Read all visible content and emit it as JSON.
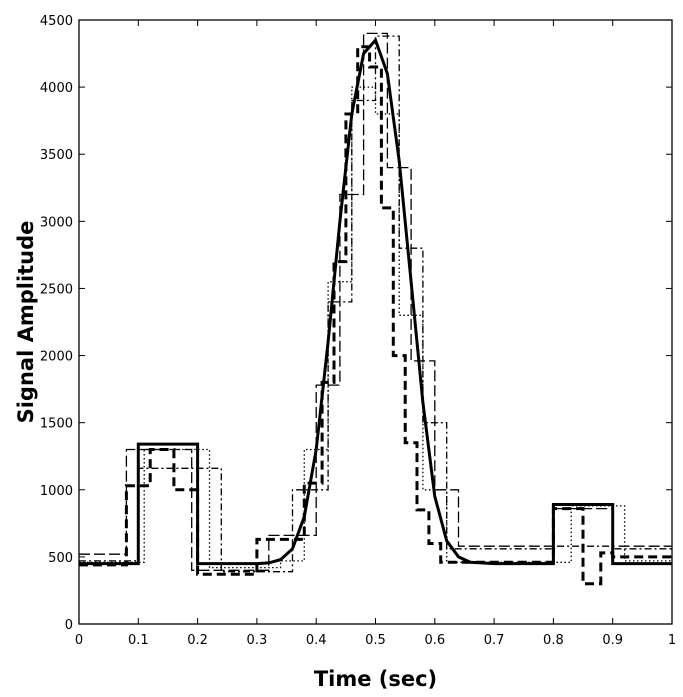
{
  "chart_data": {
    "type": "line",
    "title": "",
    "xlabel": "Time (sec)",
    "ylabel": "Signal Amplitude",
    "xlim": [
      0,
      1
    ],
    "ylim": [
      0,
      4500
    ],
    "xticks": [
      0,
      0.1,
      0.2,
      0.3,
      0.4,
      0.5,
      0.6,
      0.7,
      0.8,
      0.9,
      1
    ],
    "xtick_labels": [
      "0",
      "0.1",
      "0.2",
      "0.3",
      "0.4",
      "0.5",
      "0.6",
      "0.7",
      "0.8",
      "0.9",
      "1"
    ],
    "yticks": [
      0,
      500,
      1000,
      1500,
      2000,
      2500,
      3000,
      3500,
      4000,
      4500
    ],
    "ytick_labels": [
      "0",
      "500",
      "1000",
      "1500",
      "2000",
      "2500",
      "3000",
      "3500",
      "4000",
      "4500"
    ],
    "grid": false,
    "legend": "none",
    "series": [
      {
        "style": "solid-thick",
        "x": [
          0,
          0.1,
          0.1,
          0.2,
          0.2,
          0.3,
          0.32,
          0.34,
          0.36,
          0.38,
          0.4,
          0.42,
          0.44,
          0.46,
          0.48,
          0.5,
          0.52,
          0.54,
          0.56,
          0.58,
          0.6,
          0.62,
          0.64,
          0.66,
          0.7,
          0.8,
          0.8,
          0.9,
          0.9,
          1
        ],
        "y": [
          450,
          450,
          1340,
          1340,
          450,
          450,
          455,
          480,
          560,
          800,
          1300,
          2100,
          3000,
          3800,
          4250,
          4350,
          4100,
          3450,
          2550,
          1650,
          950,
          620,
          500,
          460,
          450,
          450,
          890,
          890,
          450,
          450
        ]
      },
      {
        "style": "dashed-thick",
        "x": [
          0,
          0.08,
          0.08,
          0.12,
          0.12,
          0.16,
          0.16,
          0.2,
          0.2,
          0.3,
          0.3,
          0.38,
          0.38,
          0.41,
          0.41,
          0.43,
          0.43,
          0.45,
          0.45,
          0.47,
          0.47,
          0.49,
          0.49,
          0.51,
          0.51,
          0.53,
          0.53,
          0.55,
          0.55,
          0.57,
          0.57,
          0.59,
          0.59,
          0.61,
          0.61,
          0.8,
          0.8,
          0.85,
          0.85,
          0.88,
          0.88,
          0.9,
          0.9,
          1
        ],
        "y": [
          440,
          440,
          1030,
          1030,
          1300,
          1300,
          1000,
          1000,
          370,
          370,
          630,
          630,
          1050,
          1050,
          1800,
          1800,
          2700,
          2700,
          3800,
          3800,
          4300,
          4300,
          4150,
          4150,
          3100,
          3100,
          2000,
          2000,
          1350,
          1350,
          850,
          850,
          600,
          600,
          460,
          460,
          860,
          860,
          300,
          300,
          530,
          530,
          500,
          500
        ]
      },
      {
        "style": "dashed-thin",
        "x": [
          0,
          0.08,
          0.08,
          0.19,
          0.19,
          0.32,
          0.32,
          0.4,
          0.4,
          0.44,
          0.44,
          0.48,
          0.48,
          0.52,
          0.52,
          0.56,
          0.56,
          0.6,
          0.6,
          0.64,
          0.64,
          0.8,
          0.8,
          0.9,
          0.9,
          1
        ],
        "y": [
          520,
          520,
          1300,
          1300,
          400,
          400,
          660,
          660,
          1780,
          1780,
          3200,
          3200,
          4400,
          4400,
          3400,
          3400,
          1960,
          1960,
          1000,
          1000,
          580,
          580,
          860,
          860,
          580,
          580
        ]
      },
      {
        "style": "dash-dot",
        "x": [
          0,
          0.1,
          0.1,
          0.24,
          0.24,
          0.36,
          0.36,
          0.42,
          0.42,
          0.46,
          0.46,
          0.5,
          0.5,
          0.54,
          0.54,
          0.58,
          0.58,
          0.62,
          0.62,
          0.8,
          0.8,
          0.9,
          0.9,
          1
        ],
        "y": [
          470,
          470,
          1160,
          1160,
          390,
          390,
          1000,
          1000,
          2400,
          2400,
          3900,
          3900,
          4380,
          4380,
          2800,
          2800,
          1500,
          1500,
          560,
          560,
          580,
          580,
          560,
          560
        ]
      },
      {
        "style": "dotted",
        "x": [
          0,
          0.11,
          0.11,
          0.22,
          0.22,
          0.34,
          0.34,
          0.38,
          0.38,
          0.42,
          0.42,
          0.46,
          0.46,
          0.5,
          0.5,
          0.54,
          0.54,
          0.58,
          0.58,
          0.62,
          0.62,
          0.83,
          0.83,
          0.92,
          0.92,
          1
        ],
        "y": [
          460,
          460,
          1300,
          1300,
          420,
          420,
          470,
          470,
          1300,
          1300,
          2550,
          2550,
          4000,
          4000,
          3800,
          3800,
          2300,
          2300,
          1000,
          1000,
          460,
          460,
          880,
          880,
          470,
          470
        ]
      }
    ]
  }
}
